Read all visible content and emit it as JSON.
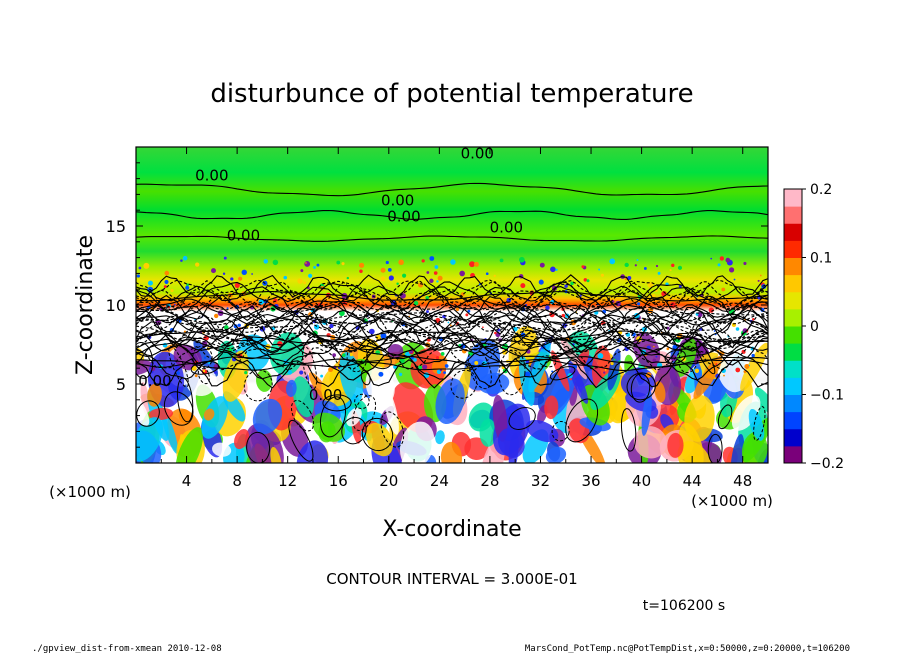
{
  "chart_data": {
    "type": "heatmap",
    "title": "disturbunce of potential temperature",
    "xlabel": "X-coordinate",
    "ylabel": "Z-coordinate",
    "x_unit_left": "(×1000 m)",
    "x_unit_right": "(×1000 m)",
    "xlim": [
      0,
      50
    ],
    "ylim": [
      0,
      20
    ],
    "xticks": [
      4,
      8,
      12,
      16,
      20,
      24,
      28,
      32,
      36,
      40,
      44,
      48
    ],
    "yticks": [
      5,
      10,
      15
    ],
    "colorbar": {
      "range": [
        -0.2,
        0.2
      ],
      "ticks": [
        {
          "value": 0.2,
          "label": "0.2"
        },
        {
          "value": 0.1,
          "label": "0.1"
        },
        {
          "value": 0,
          "label": "0"
        },
        {
          "value": -0.1,
          "label": "−0.1"
        },
        {
          "value": -0.2,
          "label": "−0.2"
        }
      ],
      "colors": [
        "#7a007a",
        "#0000cc",
        "#0044ff",
        "#0088ff",
        "#00c8ff",
        "#00e0c8",
        "#00dd44",
        "#44e000",
        "#a8f000",
        "#e6e600",
        "#ffc800",
        "#ff8800",
        "#ff2a00",
        "#d80000",
        "#ff7070",
        "#ffb8c8"
      ]
    },
    "contour_labels": [
      {
        "x": 27,
        "z": 19.6,
        "text": "0.00"
      },
      {
        "x": 6,
        "z": 18.2,
        "text": "0.00"
      },
      {
        "x": 20.7,
        "z": 16.6,
        "text": "0.00"
      },
      {
        "x": 21.2,
        "z": 15.6,
        "text": "0.00"
      },
      {
        "x": 29.3,
        "z": 14.9,
        "text": "0.00"
      },
      {
        "x": 8.5,
        "z": 14.4,
        "text": "0.00"
      },
      {
        "x": 15,
        "z": 4.3,
        "text": "0.00"
      },
      {
        "x": 1.5,
        "z": 5.2,
        "text": "0.00"
      }
    ],
    "contour_interval": "CONTOUR INTERVAL = 3.000E-01",
    "time_label": "t=106200 s"
  },
  "footer": {
    "left": "./gpview_dist-from-xmean  2010-12-08",
    "right": "MarsCond_PotTemp.nc@PotTempDist,x=0:50000,z=0:20000,t=106200"
  }
}
